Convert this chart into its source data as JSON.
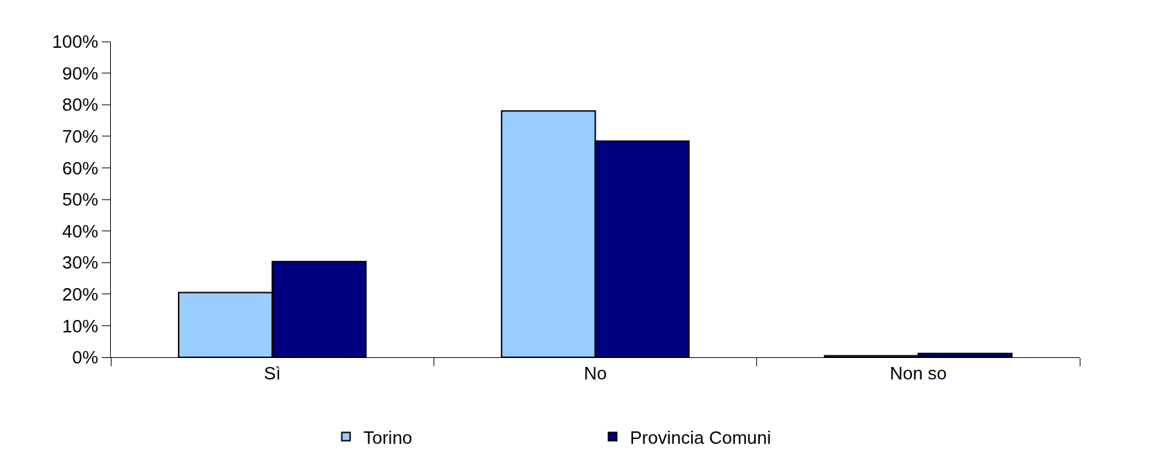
{
  "chart_data": {
    "type": "bar",
    "categories": [
      "Sì",
      "No",
      "Non so"
    ],
    "series": [
      {
        "name": "Torino",
        "color": "#99ccff",
        "values": [
          20.5,
          78,
          0.5
        ]
      },
      {
        "name": "Provincia Comuni",
        "color": "#000080",
        "values": [
          30.3,
          68.5,
          1.2
        ]
      }
    ],
    "ylim": [
      0,
      100
    ],
    "yticks": [
      {
        "value": 0,
        "label": "0%"
      },
      {
        "value": 10,
        "label": "10%"
      },
      {
        "value": 20,
        "label": "20%"
      },
      {
        "value": 30,
        "label": "30%"
      },
      {
        "value": 40,
        "label": "40%"
      },
      {
        "value": 50,
        "label": "50%"
      },
      {
        "value": 60,
        "label": "60%"
      },
      {
        "value": 70,
        "label": "70%"
      },
      {
        "value": 80,
        "label": "80%"
      },
      {
        "value": 90,
        "label": "90%"
      },
      {
        "value": 100,
        "label": "100%"
      }
    ],
    "legend": "bottom"
  }
}
